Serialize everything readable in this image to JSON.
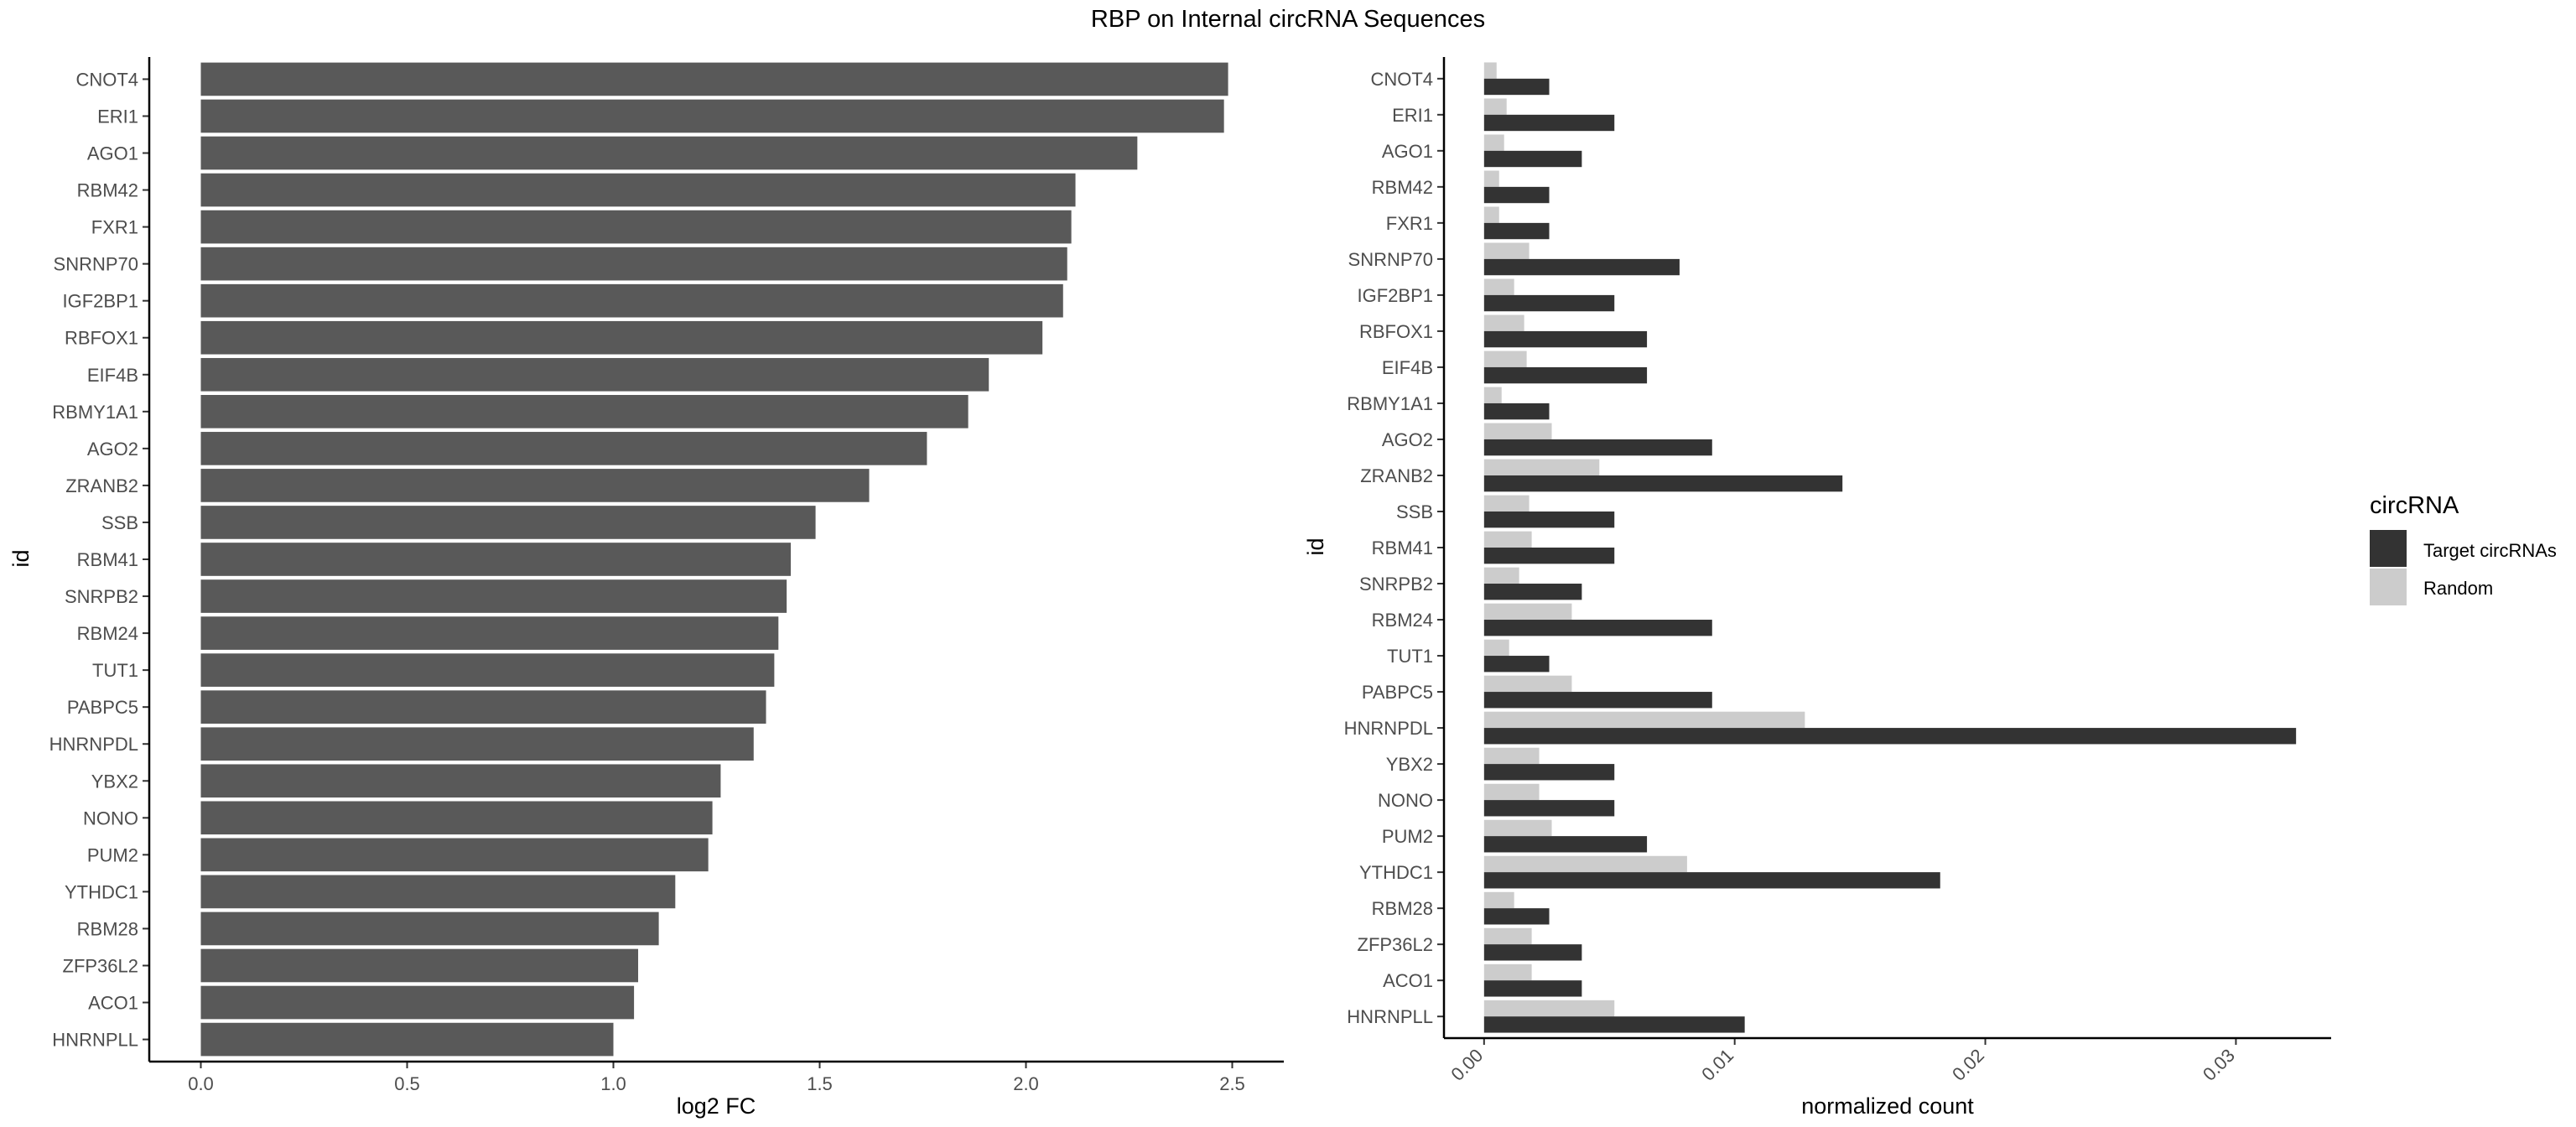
{
  "figure": {
    "title": "RBP on Internal circRNA Sequences"
  },
  "chart_data": [
    {
      "type": "bar",
      "orientation": "horizontal",
      "xlabel": "log2 FC",
      "ylabel": "id",
      "xlim": [
        -0.125,
        2.625
      ],
      "xticks": [
        0.0,
        0.5,
        1.0,
        1.5,
        2.0,
        2.5
      ],
      "xtick_labels": [
        "0.0",
        "0.5",
        "1.0",
        "1.5",
        "2.0",
        "2.5"
      ],
      "grid": false,
      "bar_color": "#595959",
      "categories": [
        "CNOT4",
        "ERI1",
        "AGO1",
        "RBM42",
        "FXR1",
        "SNRNP70",
        "IGF2BP1",
        "RBFOX1",
        "EIF4B",
        "RBMY1A1",
        "AGO2",
        "ZRANB2",
        "SSB",
        "RBM41",
        "SNRPB2",
        "RBM24",
        "TUT1",
        "PABPC5",
        "HNRNPDL",
        "YBX2",
        "NONO",
        "PUM2",
        "YTHDC1",
        "RBM28",
        "ZFP36L2",
        "ACO1",
        "HNRNPLL"
      ],
      "values": [
        2.49,
        2.48,
        2.27,
        2.12,
        2.11,
        2.1,
        2.09,
        2.04,
        1.91,
        1.86,
        1.76,
        1.62,
        1.49,
        1.43,
        1.42,
        1.4,
        1.39,
        1.37,
        1.34,
        1.26,
        1.24,
        1.23,
        1.15,
        1.11,
        1.06,
        1.05,
        1.0
      ]
    },
    {
      "type": "bar",
      "orientation": "horizontal",
      "grouped": true,
      "xlabel": "normalized count",
      "ylabel": "id",
      "xlim": [
        -0.0016,
        0.0338
      ],
      "xticks": [
        0.0,
        0.01,
        0.02,
        0.03
      ],
      "xtick_labels": [
        "0.00",
        "0.01",
        "0.02",
        "0.03"
      ],
      "grid": false,
      "legend_title": "circRNA",
      "legend_position": "right",
      "categories": [
        "CNOT4",
        "ERI1",
        "AGO1",
        "RBM42",
        "FXR1",
        "SNRNP70",
        "IGF2BP1",
        "RBFOX1",
        "EIF4B",
        "RBMY1A1",
        "AGO2",
        "ZRANB2",
        "SSB",
        "RBM41",
        "SNRPB2",
        "RBM24",
        "TUT1",
        "PABPC5",
        "HNRNPDL",
        "YBX2",
        "NONO",
        "PUM2",
        "YTHDC1",
        "RBM28",
        "ZFP36L2",
        "ACO1",
        "HNRNPLL"
      ],
      "series": [
        {
          "name": "Target circRNAs",
          "color": "#333333",
          "values": [
            0.0026,
            0.0052,
            0.0039,
            0.0026,
            0.0026,
            0.0078,
            0.0052,
            0.0065,
            0.0065,
            0.0026,
            0.0091,
            0.0143,
            0.0052,
            0.0052,
            0.0039,
            0.0091,
            0.0026,
            0.0091,
            0.0324,
            0.0052,
            0.0052,
            0.0065,
            0.0182,
            0.0026,
            0.0039,
            0.0039,
            0.0104
          ]
        },
        {
          "name": "Random",
          "color": "#cccccc",
          "values": [
            0.0005,
            0.0009,
            0.0008,
            0.0006,
            0.0006,
            0.0018,
            0.0012,
            0.0016,
            0.0017,
            0.0007,
            0.0027,
            0.0046,
            0.0018,
            0.0019,
            0.0014,
            0.0035,
            0.001,
            0.0035,
            0.0128,
            0.0022,
            0.0022,
            0.0027,
            0.0081,
            0.0012,
            0.0019,
            0.0019,
            0.0052
          ]
        }
      ]
    }
  ]
}
